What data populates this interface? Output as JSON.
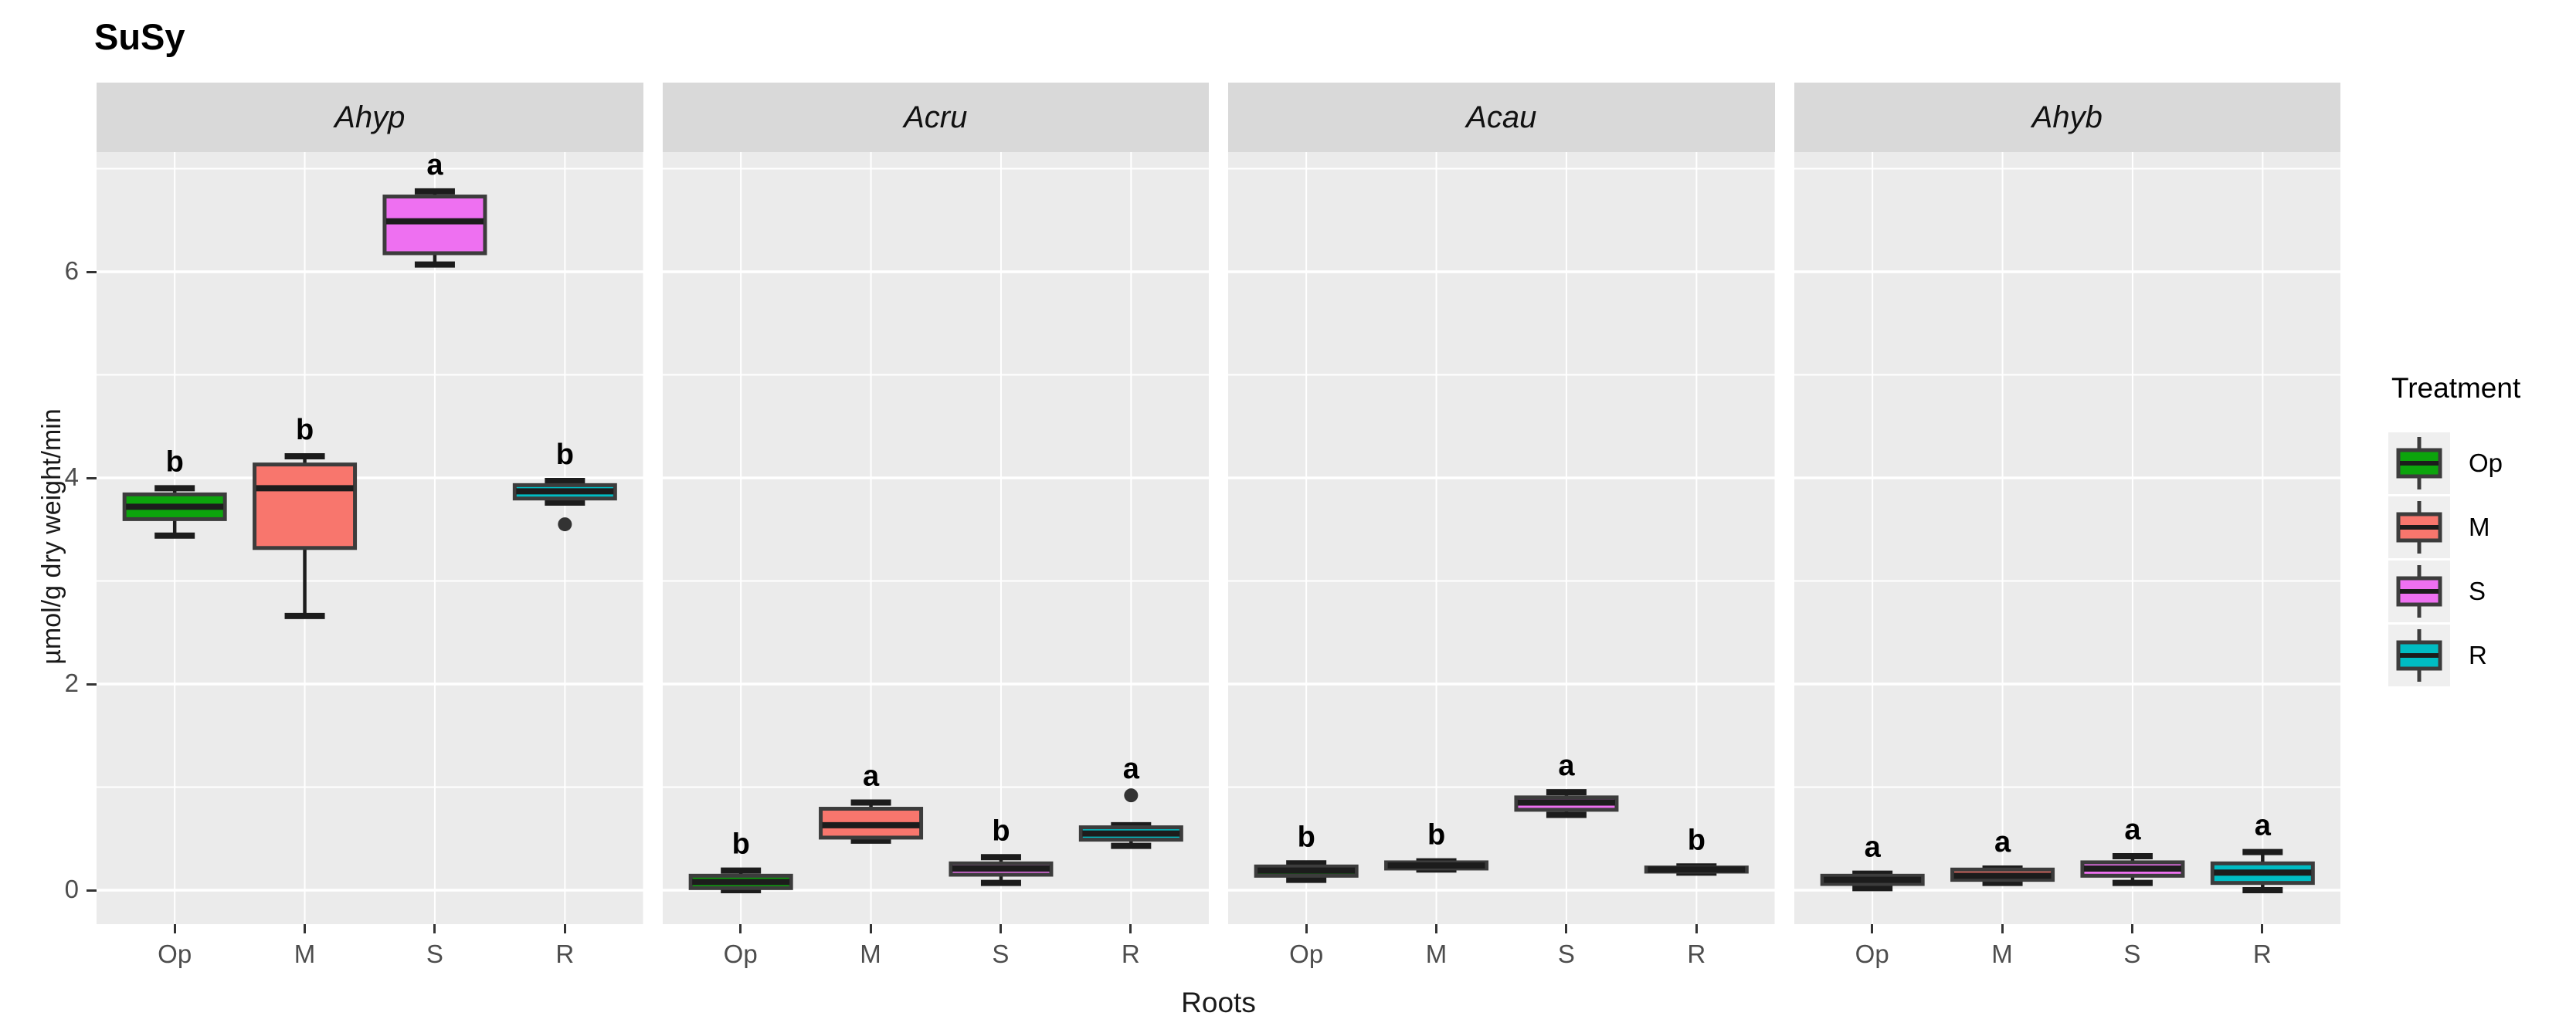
{
  "chart_data": {
    "type": "boxplot",
    "title": "SuSy",
    "xlabel": "Roots",
    "ylabel": "µmol/g dry weight/min",
    "y_ticks": [
      0,
      2,
      4,
      6
    ],
    "y_minor_gridlines": [
      1,
      3,
      5,
      7
    ],
    "ylim": [
      -0.33,
      7.16
    ],
    "categories": [
      "Op",
      "M",
      "S",
      "R"
    ],
    "legend": {
      "title": "Treatment",
      "items": [
        "Op",
        "M",
        "S",
        "R"
      ]
    },
    "treatment_colors": {
      "Op": "#0CA40C",
      "M": "#F8766D",
      "S": "#EE70F1",
      "R": "#00BCC3"
    },
    "facets": [
      {
        "label": "Ahyp",
        "boxes": [
          {
            "treatment": "Op",
            "letter": "b",
            "min": 3.44,
            "q1": 3.6,
            "median": 3.72,
            "q3": 3.84,
            "max": 3.9,
            "outliers": []
          },
          {
            "treatment": "M",
            "letter": "b",
            "min": 2.66,
            "q1": 3.32,
            "median": 3.9,
            "q3": 4.13,
            "max": 4.21,
            "outliers": []
          },
          {
            "treatment": "S",
            "letter": "a",
            "min": 6.07,
            "q1": 6.18,
            "median": 6.49,
            "q3": 6.73,
            "max": 6.78,
            "outliers": []
          },
          {
            "treatment": "R",
            "letter": "b",
            "min": 3.76,
            "q1": 3.8,
            "median": 3.87,
            "q3": 3.93,
            "max": 3.97,
            "outliers": [
              3.55
            ]
          }
        ]
      },
      {
        "label": "Acru",
        "boxes": [
          {
            "treatment": "Op",
            "letter": "b",
            "min": 0.0,
            "q1": 0.02,
            "median": 0.08,
            "q3": 0.14,
            "max": 0.19,
            "outliers": []
          },
          {
            "treatment": "M",
            "letter": "a",
            "min": 0.48,
            "q1": 0.51,
            "median": 0.63,
            "q3": 0.79,
            "max": 0.85,
            "outliers": []
          },
          {
            "treatment": "S",
            "letter": "b",
            "min": 0.07,
            "q1": 0.15,
            "median": 0.21,
            "q3": 0.26,
            "max": 0.32,
            "outliers": []
          },
          {
            "treatment": "R",
            "letter": "a",
            "min": 0.43,
            "q1": 0.49,
            "median": 0.55,
            "q3": 0.61,
            "max": 0.63,
            "outliers": [
              0.92
            ]
          }
        ]
      },
      {
        "label": "Acau",
        "boxes": [
          {
            "treatment": "Op",
            "letter": "b",
            "min": 0.1,
            "q1": 0.14,
            "median": 0.19,
            "q3": 0.23,
            "max": 0.26,
            "outliers": []
          },
          {
            "treatment": "M",
            "letter": "b",
            "min": 0.2,
            "q1": 0.21,
            "median": 0.24,
            "q3": 0.27,
            "max": 0.28,
            "outliers": []
          },
          {
            "treatment": "S",
            "letter": "a",
            "min": 0.73,
            "q1": 0.78,
            "median": 0.85,
            "q3": 0.9,
            "max": 0.95,
            "outliers": []
          },
          {
            "treatment": "R",
            "letter": "b",
            "min": 0.17,
            "q1": 0.18,
            "median": 0.2,
            "q3": 0.22,
            "max": 0.23,
            "outliers": []
          }
        ]
      },
      {
        "label": "Ahyb",
        "boxes": [
          {
            "treatment": "Op",
            "letter": "a",
            "min": 0.02,
            "q1": 0.06,
            "median": 0.1,
            "q3": 0.14,
            "max": 0.16,
            "outliers": []
          },
          {
            "treatment": "M",
            "letter": "a",
            "min": 0.07,
            "q1": 0.1,
            "median": 0.14,
            "q3": 0.2,
            "max": 0.21,
            "outliers": []
          },
          {
            "treatment": "S",
            "letter": "a",
            "min": 0.07,
            "q1": 0.14,
            "median": 0.21,
            "q3": 0.27,
            "max": 0.33,
            "outliers": []
          },
          {
            "treatment": "R",
            "letter": "a",
            "min": 0.0,
            "q1": 0.07,
            "median": 0.17,
            "q3": 0.26,
            "max": 0.37,
            "outliers": []
          }
        ]
      }
    ]
  },
  "colors": {
    "panel_bg": "#EBEBEB",
    "strip_bg": "#D9D9D9",
    "grid": "#FFFFFF",
    "box_outline": "#3C3C3C",
    "median": "#1C1C1C",
    "whisker": "#1C1C1C",
    "outlier": "#333333",
    "tick_text": "#4D4D4D",
    "axis_title": "#1A1A1A",
    "legend_key_bg": "#EFEFEF"
  }
}
